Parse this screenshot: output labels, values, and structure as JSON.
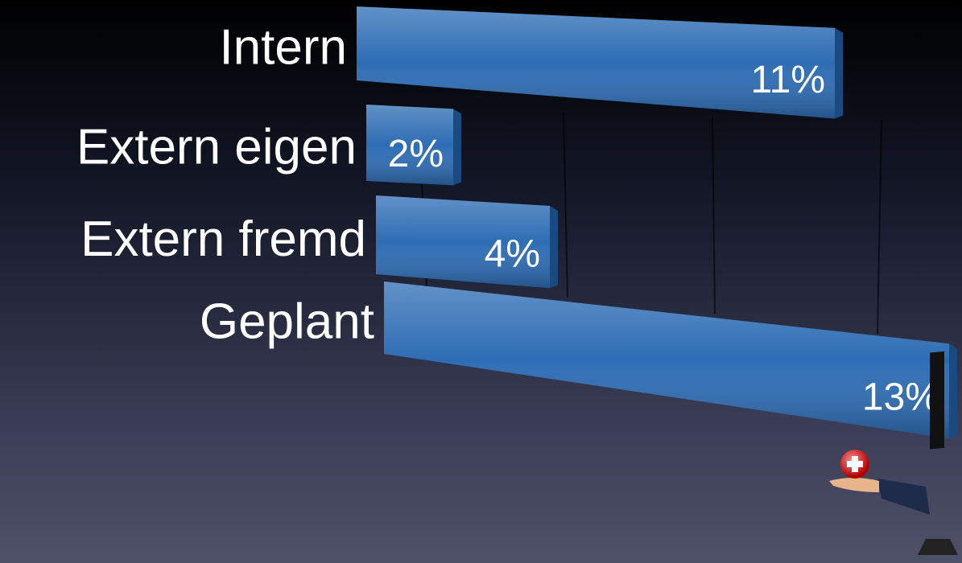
{
  "chart_data": {
    "type": "bar3d",
    "categories": [
      "Intern",
      "Extern eigen",
      "Extern fremd",
      "Geplant"
    ],
    "values": [
      11,
      2,
      4,
      13
    ],
    "value_labels": [
      "11%",
      "2%",
      "4%",
      "13%"
    ],
    "color": "#2e6db4"
  }
}
